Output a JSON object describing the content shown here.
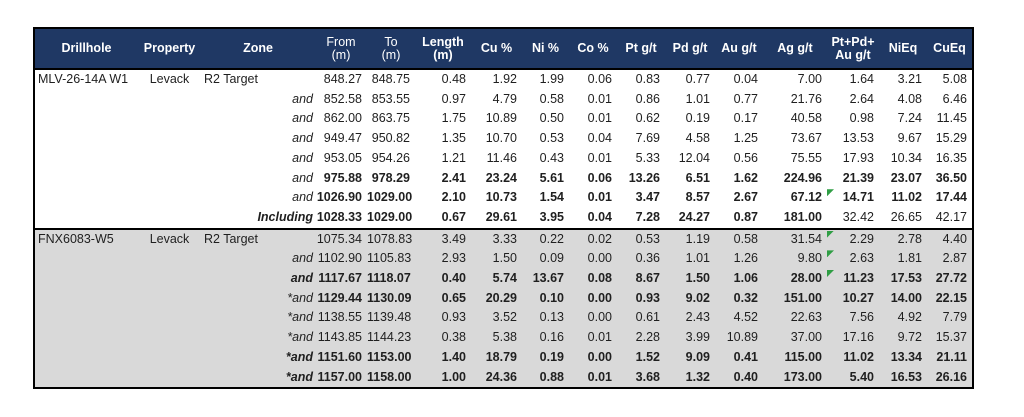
{
  "colors": {
    "header_bg": "#1F3864",
    "header_text": "#FFFFFF",
    "shaded_section_bg": "#D9D9D9",
    "body_text": "#1F1F1F",
    "table_border": "#000000",
    "error_flag_green": "#2F9E44"
  },
  "chart_data": {
    "type": "table",
    "title": "",
    "legend": "none",
    "grid": "outer-border, header separator and drillhole section separators only",
    "columns": [
      {
        "id": "drillhole",
        "label": "Drillhole",
        "sub": "",
        "bold": true,
        "align": "left"
      },
      {
        "id": "property",
        "label": "Property",
        "sub": "",
        "bold": true,
        "align": "center"
      },
      {
        "id": "zone",
        "label": "Zone",
        "sub": "",
        "bold": true,
        "align": "left"
      },
      {
        "id": "from",
        "label": "From",
        "sub": "(m)",
        "bold": false,
        "align": "right"
      },
      {
        "id": "to",
        "label": "To",
        "sub": "(m)",
        "bold": false,
        "align": "right"
      },
      {
        "id": "length",
        "label": "Length",
        "sub": "(m)",
        "bold": true,
        "align": "right"
      },
      {
        "id": "cu-pct",
        "label": "Cu %",
        "sub": "",
        "bold": true,
        "align": "right"
      },
      {
        "id": "ni-pct",
        "label": "Ni %",
        "sub": "",
        "bold": true,
        "align": "right"
      },
      {
        "id": "co-pct",
        "label": "Co %",
        "sub": "",
        "bold": true,
        "align": "right"
      },
      {
        "id": "pt-gpt",
        "label": "Pt g/t",
        "sub": "",
        "bold": true,
        "align": "right"
      },
      {
        "id": "pd-gpt",
        "label": "Pd g/t",
        "sub": "",
        "bold": true,
        "align": "right"
      },
      {
        "id": "au-gpt",
        "label": "Au g/t",
        "sub": "",
        "bold": true,
        "align": "right"
      },
      {
        "id": "ag-gpt",
        "label": "Ag g/t",
        "sub": "",
        "bold": true,
        "align": "right"
      },
      {
        "id": "pt-pd-au-gpt",
        "label": "Pt+Pd+",
        "sub": "Au g/t",
        "bold": true,
        "align": "right"
      },
      {
        "id": "nieq",
        "label": "NiEq",
        "sub": "",
        "bold": true,
        "align": "right"
      },
      {
        "id": "cueq",
        "label": "CuEq",
        "sub": "",
        "bold": true,
        "align": "right"
      }
    ],
    "sections": [
      {
        "shaded": false,
        "rows": [
          {
            "drillhole": "MLV-26-14A W1",
            "property": "Levack",
            "zone": "R2 Target",
            "qualifier": "",
            "qualifier_bold": false,
            "bold": false,
            "normal_tail": 0,
            "flag": false,
            "values": [
              "848.27",
              "848.75",
              "0.48",
              "1.92",
              "1.99",
              "0.06",
              "0.83",
              "0.77",
              "0.04",
              "7.00",
              "1.64",
              "3.21",
              "5.08"
            ]
          },
          {
            "qualifier": "and",
            "qualifier_bold": false,
            "bold": false,
            "normal_tail": 0,
            "flag": false,
            "values": [
              "852.58",
              "853.55",
              "0.97",
              "4.79",
              "0.58",
              "0.01",
              "0.86",
              "1.01",
              "0.77",
              "21.76",
              "2.64",
              "4.08",
              "6.46"
            ]
          },
          {
            "qualifier": "and",
            "qualifier_bold": false,
            "bold": false,
            "normal_tail": 0,
            "flag": false,
            "values": [
              "862.00",
              "863.75",
              "1.75",
              "10.89",
              "0.50",
              "0.01",
              "0.62",
              "0.19",
              "0.17",
              "40.58",
              "0.98",
              "7.24",
              "11.45"
            ]
          },
          {
            "qualifier": "and",
            "qualifier_bold": false,
            "bold": false,
            "normal_tail": 0,
            "flag": false,
            "values": [
              "949.47",
              "950.82",
              "1.35",
              "10.70",
              "0.53",
              "0.04",
              "7.69",
              "4.58",
              "1.25",
              "73.67",
              "13.53",
              "9.67",
              "15.29"
            ]
          },
          {
            "qualifier": "and",
            "qualifier_bold": false,
            "bold": false,
            "normal_tail": 0,
            "flag": false,
            "values": [
              "953.05",
              "954.26",
              "1.21",
              "11.46",
              "0.43",
              "0.01",
              "5.33",
              "12.04",
              "0.56",
              "75.55",
              "17.93",
              "10.34",
              "16.35"
            ]
          },
          {
            "qualifier": "and",
            "qualifier_bold": false,
            "bold": true,
            "normal_tail": 0,
            "flag": false,
            "values": [
              "975.88",
              "978.29",
              "2.41",
              "23.24",
              "5.61",
              "0.06",
              "13.26",
              "6.51",
              "1.62",
              "224.96",
              "21.39",
              "23.07",
              "36.50"
            ]
          },
          {
            "qualifier": "and",
            "qualifier_bold": false,
            "bold": true,
            "normal_tail": 0,
            "flag": true,
            "values": [
              "1026.90",
              "1029.00",
              "2.10",
              "10.73",
              "1.54",
              "0.01",
              "3.47",
              "8.57",
              "2.67",
              "67.12",
              "14.71",
              "11.02",
              "17.44"
            ]
          },
          {
            "qualifier": "Including",
            "qualifier_bold": true,
            "bold": true,
            "normal_tail": 3,
            "flag": false,
            "values": [
              "1028.33",
              "1029.00",
              "0.67",
              "29.61",
              "3.95",
              "0.04",
              "7.28",
              "24.27",
              "0.87",
              "181.00",
              "32.42",
              "26.65",
              "42.17"
            ]
          }
        ]
      },
      {
        "shaded": true,
        "rows": [
          {
            "drillhole": "FNX6083-W5",
            "property": "Levack",
            "zone": "R2 Target",
            "qualifier": "",
            "qualifier_bold": false,
            "bold": false,
            "normal_tail": 0,
            "flag": true,
            "values": [
              "1075.34",
              "1078.83",
              "3.49",
              "3.33",
              "0.22",
              "0.02",
              "0.53",
              "1.19",
              "0.58",
              "31.54",
              "2.29",
              "2.78",
              "4.40"
            ]
          },
          {
            "qualifier": "and",
            "qualifier_bold": false,
            "bold": false,
            "normal_tail": 0,
            "flag": true,
            "values": [
              "1102.90",
              "1105.83",
              "2.93",
              "1.50",
              "0.09",
              "0.00",
              "0.36",
              "1.01",
              "1.26",
              "9.80",
              "2.63",
              "1.81",
              "2.87"
            ]
          },
          {
            "qualifier": "and",
            "qualifier_bold": true,
            "bold": true,
            "normal_tail": 0,
            "flag": true,
            "values": [
              "1117.67",
              "1118.07",
              "0.40",
              "5.74",
              "13.67",
              "0.08",
              "8.67",
              "1.50",
              "1.06",
              "28.00",
              "11.23",
              "17.53",
              "27.72"
            ]
          },
          {
            "qualifier": "*and",
            "qualifier_bold": false,
            "bold": true,
            "normal_tail": 0,
            "flag": false,
            "values": [
              "1129.44",
              "1130.09",
              "0.65",
              "20.29",
              "0.10",
              "0.00",
              "0.93",
              "9.02",
              "0.32",
              "151.00",
              "10.27",
              "14.00",
              "22.15"
            ]
          },
          {
            "qualifier": "*and",
            "qualifier_bold": false,
            "bold": false,
            "normal_tail": 0,
            "flag": false,
            "values": [
              "1138.55",
              "1139.48",
              "0.93",
              "3.52",
              "0.13",
              "0.00",
              "0.61",
              "2.43",
              "4.52",
              "22.63",
              "7.56",
              "4.92",
              "7.79"
            ]
          },
          {
            "qualifier": "*and",
            "qualifier_bold": false,
            "bold": false,
            "normal_tail": 0,
            "flag": false,
            "values": [
              "1143.85",
              "1144.23",
              "0.38",
              "5.38",
              "0.16",
              "0.01",
              "2.28",
              "3.99",
              "10.89",
              "37.00",
              "17.16",
              "9.72",
              "15.37"
            ]
          },
          {
            "qualifier": "*and",
            "qualifier_bold": true,
            "bold": true,
            "normal_tail": 0,
            "flag": false,
            "values": [
              "1151.60",
              "1153.00",
              "1.40",
              "18.79",
              "0.19",
              "0.00",
              "1.52",
              "9.09",
              "0.41",
              "115.00",
              "11.02",
              "13.34",
              "21.11"
            ]
          },
          {
            "qualifier": "*and",
            "qualifier_bold": true,
            "bold": true,
            "normal_tail": 0,
            "flag": false,
            "values": [
              "1157.00",
              "1158.00",
              "1.00",
              "24.36",
              "0.88",
              "0.01",
              "3.68",
              "1.32",
              "0.40",
              "173.00",
              "5.40",
              "16.53",
              "26.16"
            ]
          }
        ]
      }
    ]
  }
}
